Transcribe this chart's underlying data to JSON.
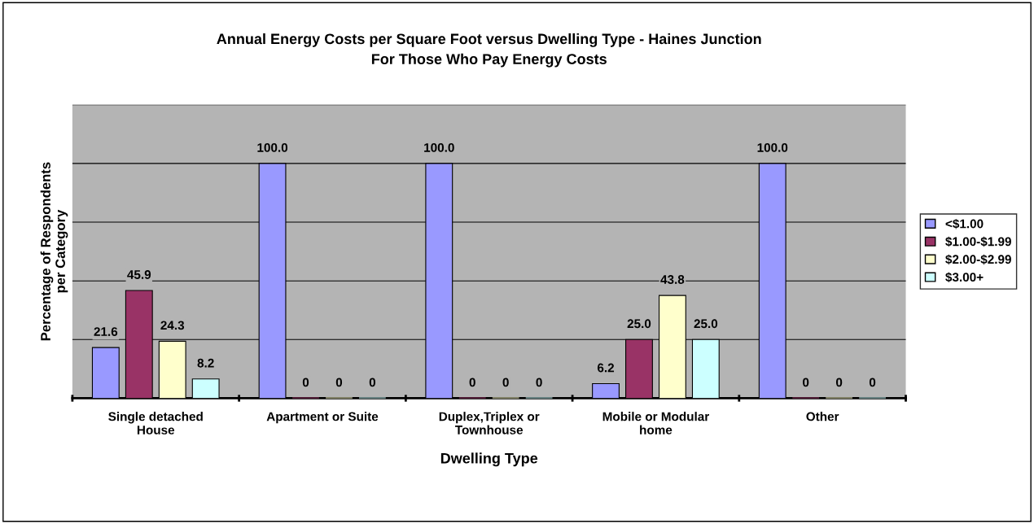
{
  "chart_data": {
    "type": "bar",
    "title": "Annual Energy Costs per Square Foot versus Dwelling Type - Haines Junction\nFor Those Who Pay Energy Costs",
    "xlabel": "Dwelling Type",
    "ylabel": "Percentage of Respondents\nper Category",
    "categories": [
      "Single detached\nHouse",
      "Apartment or Suite",
      "Duplex,Triplex or\nTownhouse",
      "Mobile or Modular\nhome",
      "Other"
    ],
    "series": [
      {
        "name": "<$1.00",
        "color": "#9999ff",
        "values": [
          21.6,
          100.0,
          100.0,
          6.2,
          100.0
        ],
        "value_labels": [
          "21.6",
          "100.0",
          "100.0",
          "6.2",
          "100.0"
        ]
      },
      {
        "name": "$1.00-$1.99",
        "color": "#993366",
        "values": [
          45.9,
          0,
          0,
          25.0,
          0
        ],
        "value_labels": [
          "45.9",
          "0",
          "0",
          "25.0",
          "0"
        ]
      },
      {
        "name": "$2.00-$2.99",
        "color": "#ffffcc",
        "values": [
          24.3,
          0,
          0,
          43.8,
          0
        ],
        "value_labels": [
          "24.3",
          "0",
          "0",
          "43.8",
          "0"
        ]
      },
      {
        "name": "$3.00+",
        "color": "#ccffff",
        "values": [
          8.2,
          0,
          0,
          25.0,
          0
        ],
        "value_labels": [
          "8.2",
          "0",
          "0",
          "25.0",
          "0"
        ]
      }
    ],
    "ylim": [
      0,
      125
    ],
    "yticks": [
      {
        "value": 0,
        "label": null
      },
      {
        "value": 25,
        "label": null
      },
      {
        "value": 50,
        "label": null
      },
      {
        "value": 75,
        "label": null
      },
      {
        "value": 100,
        "label": null
      },
      {
        "value": 125,
        "label": null
      }
    ],
    "tick_labels": "x",
    "grid": "y",
    "legend": "right"
  }
}
